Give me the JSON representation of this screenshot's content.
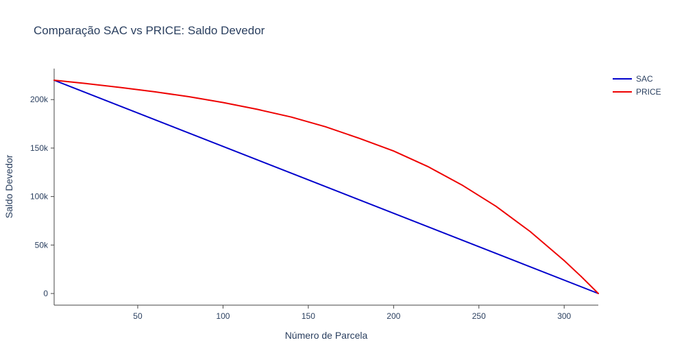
{
  "chart_data": {
    "type": "line",
    "title": "Comparação SAC vs PRICE: Saldo Devedor",
    "xlabel": "Número de Parcela",
    "ylabel": "Saldo Devedor",
    "xlim": [
      1,
      320
    ],
    "ylim": [
      -12000,
      232000
    ],
    "x_ticks": [
      50,
      100,
      150,
      200,
      250,
      300
    ],
    "x_tick_labels": [
      "50",
      "100",
      "150",
      "200",
      "250",
      "300"
    ],
    "y_ticks": [
      0,
      50000,
      100000,
      150000,
      200000
    ],
    "y_tick_labels": [
      "0",
      "50k",
      "100k",
      "150k",
      "200k"
    ],
    "grid": false,
    "legend_position": "top-right",
    "series": [
      {
        "name": "SAC",
        "color": "#0000cc",
        "x": [
          1,
          320
        ],
        "y": [
          220000,
          0
        ]
      },
      {
        "name": "PRICE",
        "color": "#ee0000",
        "x": [
          1,
          20,
          40,
          60,
          80,
          100,
          120,
          140,
          160,
          180,
          200,
          220,
          240,
          260,
          280,
          300,
          310,
          320
        ],
        "y": [
          220000,
          216500,
          212500,
          208000,
          203000,
          197000,
          190000,
          182000,
          172000,
          160000,
          147000,
          131000,
          112000,
          90000,
          64000,
          34000,
          17500,
          0
        ]
      }
    ]
  }
}
